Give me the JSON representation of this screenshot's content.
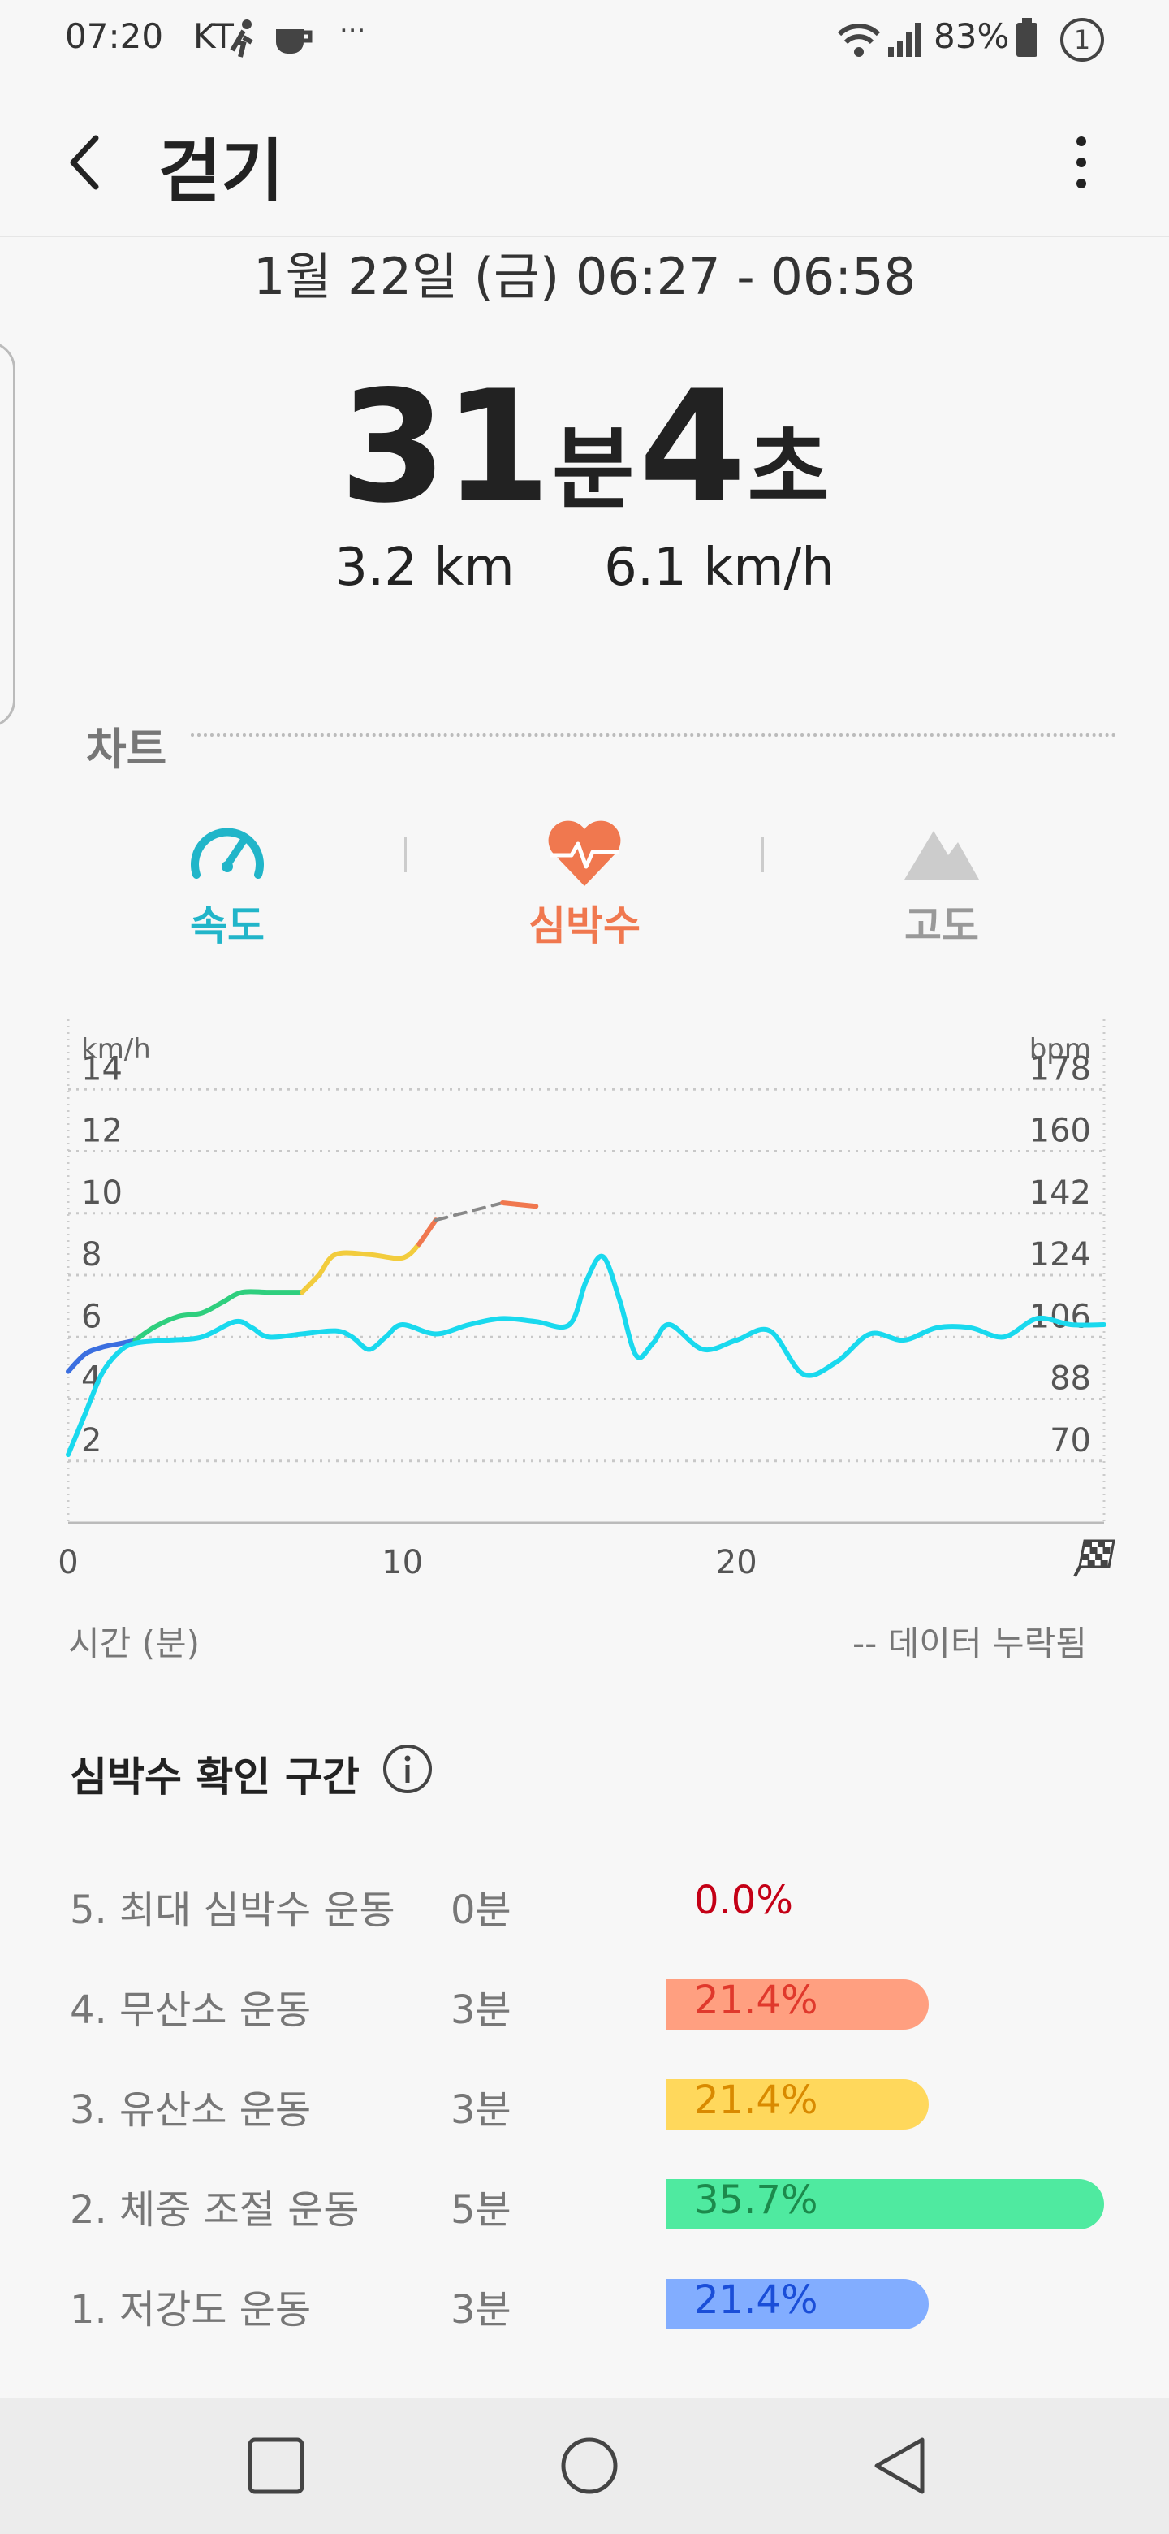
{
  "status_bar": {
    "time": "07:20",
    "carrier": "KT",
    "overflow": "···",
    "battery_pct": "83%",
    "notif_count": "1",
    "icons": [
      "walking-figure-icon",
      "coffee-icon",
      "wifi-icon",
      "signal-icon",
      "battery-icon"
    ]
  },
  "app_bar": {
    "title": "걷기",
    "back_icon": "chevron-left-icon",
    "more_icon": "more-vertical-icon"
  },
  "summary": {
    "datetime": "1월 22일 (금) 06:27 - 06:58",
    "minutes": "31",
    "minutes_unit": "분",
    "seconds": "4",
    "seconds_unit": "초",
    "distance": "3.2 km",
    "speed": "6.1 km/h"
  },
  "chart_section": {
    "title": "차트",
    "tabs": [
      {
        "label": "속도",
        "icon": "speedometer-icon",
        "color": "#21b5c9"
      },
      {
        "label": "심박수",
        "icon": "heart-rate-icon",
        "color": "#f0784f"
      },
      {
        "label": "고도",
        "icon": "mountain-icon",
        "color": "#aaaaaa"
      }
    ],
    "time_axis_label": "시간 (분)",
    "missing_legend": "-- 데이터 누락됨"
  },
  "chart_data": {
    "type": "line",
    "y_left_unit": "km/h",
    "y_right_unit": "bpm",
    "y_left_ticks": [
      "2",
      "4",
      "6",
      "8",
      "10",
      "12",
      "14"
    ],
    "y_right_ticks": [
      "70",
      "88",
      "106",
      "124",
      "142",
      "160",
      "178"
    ],
    "x_ticks": [
      "0",
      "10",
      "20"
    ],
    "x_finish_icon": "checkered-flag-icon",
    "xlim": [
      0,
      31
    ],
    "ylim_left": [
      0,
      16
    ],
    "ylim_right": [
      52,
      196
    ],
    "grid": true,
    "series": [
      {
        "axis": "left",
        "color": "#19d9ee",
        "x": [
          0,
          0.5,
          1,
          1.5,
          2,
          3,
          4,
          5,
          5.5,
          6,
          7,
          8,
          8.5,
          9,
          9.5,
          10,
          11,
          12,
          13,
          14,
          15,
          15.5,
          16,
          16.5,
          17,
          17.5,
          18,
          19,
          20,
          21,
          22,
          23,
          24,
          25,
          26,
          27,
          28,
          29,
          30,
          31
        ],
        "y": [
          2.2,
          3.5,
          4.8,
          5.5,
          5.8,
          5.9,
          6.0,
          6.5,
          6.3,
          6.0,
          6.1,
          6.2,
          6.0,
          5.6,
          6.0,
          6.4,
          6.1,
          6.4,
          6.6,
          6.5,
          6.4,
          7.8,
          8.6,
          7.2,
          5.4,
          5.8,
          6.4,
          5.6,
          5.9,
          6.2,
          4.8,
          5.2,
          6.1,
          5.9,
          6.3,
          6.3,
          6.0,
          6.6,
          6.4,
          6.4
        ]
      },
      {
        "axis": "right",
        "colors_by_zone": [
          "#3b6fe0",
          "#2fcf7e",
          "#f2cc3d",
          "#f0784f"
        ],
        "segments": [
          {
            "color": "#3b6fe0",
            "x": [
              0,
              0.5,
              1,
              1.5,
              2
            ],
            "y": [
              96,
              101,
              103,
              104,
              105
            ]
          },
          {
            "color": "#2fcf7e",
            "x": [
              2,
              2.6,
              3.3,
              4,
              4.6,
              5.2,
              6,
              7
            ],
            "y": [
              105,
              109,
              112,
              113,
              116,
              119,
              119,
              119
            ]
          },
          {
            "color": "#f2cc3d",
            "x": [
              7,
              7.5,
              8,
              9,
              10,
              10.5
            ],
            "y": [
              119,
              124,
              130,
              130,
              129,
              133
            ]
          },
          {
            "color": "#f0784f",
            "x": [
              10.5,
              11
            ],
            "y": [
              133,
              140
            ]
          },
          {
            "color": "#888888",
            "dashed": true,
            "x": [
              11,
              13
            ],
            "y": [
              140,
              145
            ]
          },
          {
            "color": "#f0784f",
            "x": [
              13,
              14
            ],
            "y": [
              145,
              144
            ]
          }
        ]
      }
    ]
  },
  "zones": {
    "title": "심박수 확인 구간",
    "info_icon": "info-circle-icon",
    "rows": [
      {
        "name": "5. 최대 심박수 운동",
        "minutes": "0분",
        "pct": "0.0%",
        "value": 0.0,
        "bar": "#ffffff",
        "text": "#c40016"
      },
      {
        "name": "4. 무산소 운동",
        "minutes": "3분",
        "pct": "21.4%",
        "value": 21.4,
        "bar": "#ff9f80",
        "text": "#e0392c"
      },
      {
        "name": "3. 유산소 운동",
        "minutes": "3분",
        "pct": "21.4%",
        "value": 21.4,
        "bar": "#ffd85c",
        "text": "#d98a00"
      },
      {
        "name": "2. 체중 조절 운동",
        "minutes": "5분",
        "pct": "35.7%",
        "value": 35.7,
        "bar": "#4feaa0",
        "text": "#1c8a4c"
      },
      {
        "name": "1. 저강도 운동",
        "minutes": "3분",
        "pct": "21.4%",
        "value": 21.4,
        "bar": "#82adff",
        "text": "#1a4ed8"
      }
    ]
  },
  "nav_bar": {
    "icons": [
      "recent-apps-icon",
      "home-icon",
      "back-triangle-icon"
    ]
  }
}
